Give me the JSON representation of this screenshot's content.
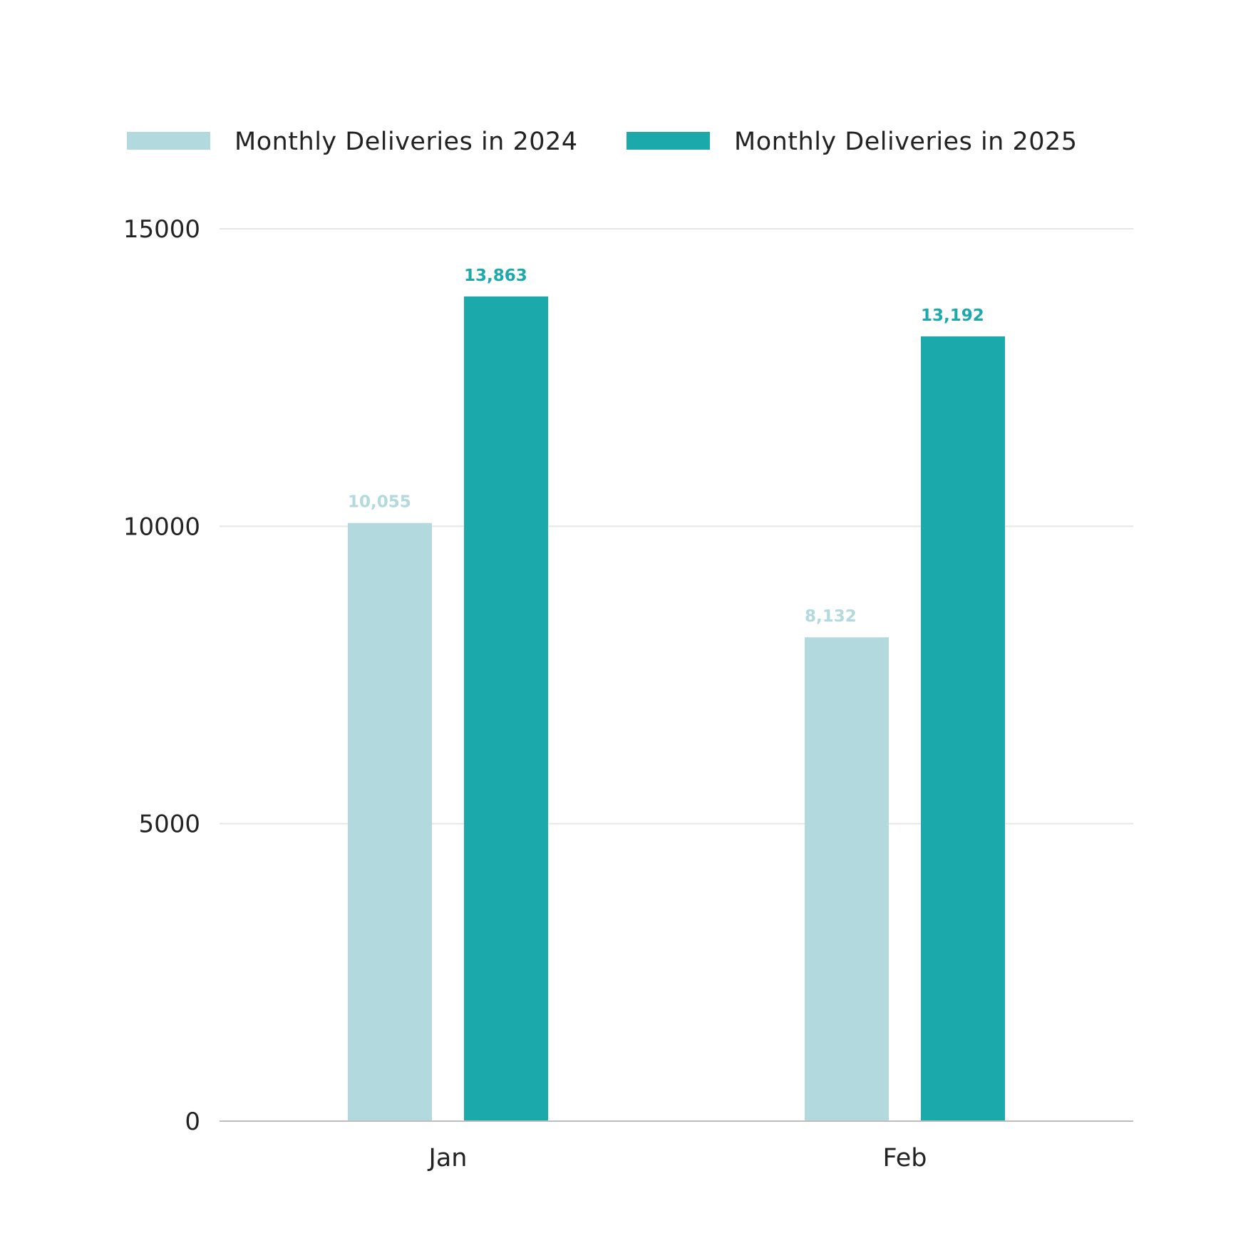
{
  "chart_data": {
    "type": "bar",
    "title": "",
    "xlabel": "",
    "ylabel": "",
    "categories": [
      "Jan",
      "Feb"
    ],
    "series": [
      {
        "name": "Monthly Deliveries in 2024",
        "color": "#b2d9de",
        "values": [
          10055,
          8132
        ],
        "labels": [
          "10,055",
          "8,132"
        ]
      },
      {
        "name": "Monthly Deliveries in 2025",
        "color": "#1ca9ab",
        "values": [
          13863,
          13192
        ],
        "labels": [
          "13,863",
          "13,192"
        ]
      }
    ],
    "ylim": [
      0,
      15000
    ],
    "yticks": [
      0,
      5000,
      10000,
      15000
    ],
    "ytick_labels": [
      "0",
      "5000",
      "10000",
      "15000"
    ],
    "grid": true,
    "legend_position": "top-left",
    "data_labels": true
  }
}
